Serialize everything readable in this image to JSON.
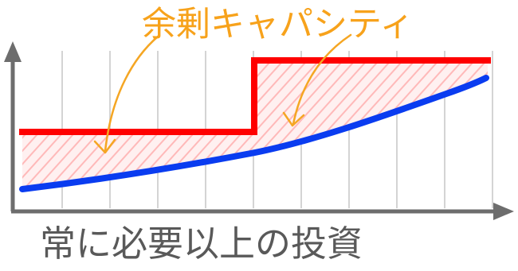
{
  "diagram": {
    "annotation_label": "余剰キャパシティ",
    "caption": "常に必要以上の投資",
    "colors": {
      "capacity_line": "#ff0000",
      "demand_curve": "#0a3cf0",
      "surplus_hatch": "#ffb3b3",
      "annotation_text": "#f7a21b",
      "arrows": "#f5a623",
      "axes": "#6d6d6d",
      "grid": "#d4d4d4",
      "caption_text": "#595959"
    },
    "icons": {
      "arrow_left": "curved-arrow-icon",
      "arrow_right": "curved-arrow-icon"
    }
  }
}
